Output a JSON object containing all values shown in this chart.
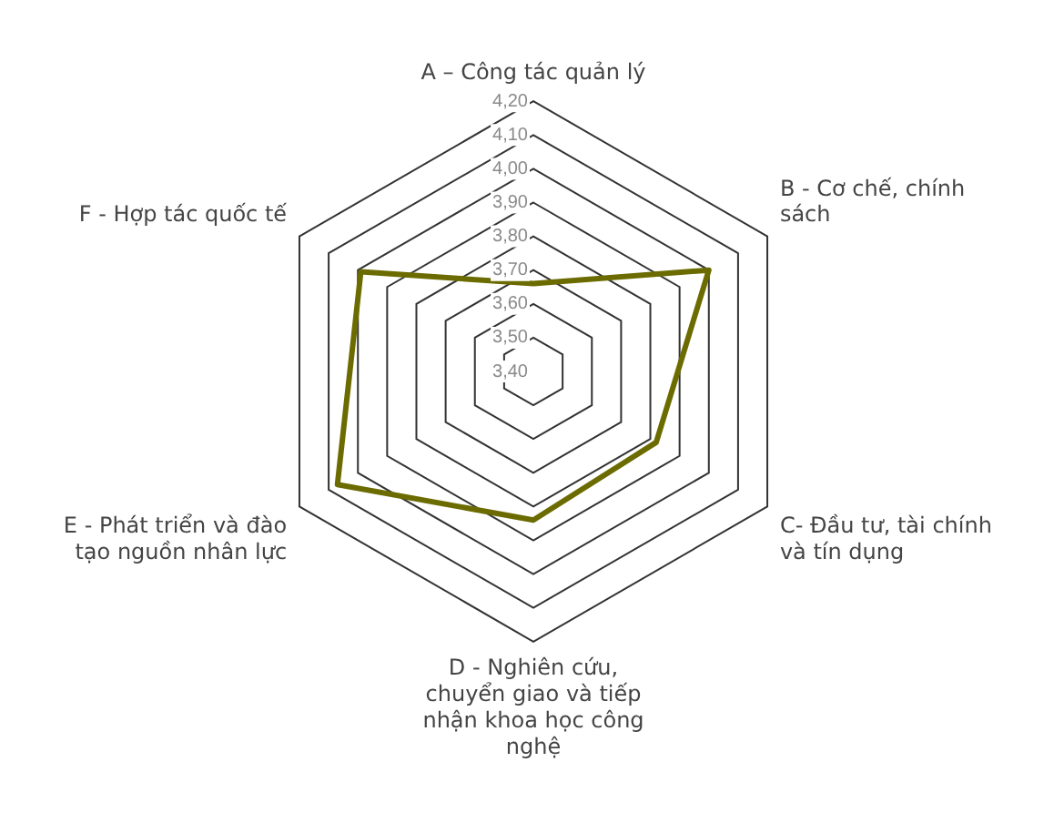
{
  "chart_data": {
    "type": "radar",
    "categories": [
      "A – Công tác quản lý",
      "B - Cơ chế, chính sách",
      "C- Đầu tư, tài chính và tín dụng",
      "D - Nghiên cứu, chuyển giao và tiếp nhận khoa học công nghệ",
      "E - Phát triển và đào tạo nguồn nhân lực",
      "F - Hợp tác quốc tế"
    ],
    "series": [
      {
        "color": "#6b6b00",
        "values": [
          3.66,
          4.0,
          3.82,
          3.84,
          4.07,
          3.99
        ]
      }
    ],
    "ylim": [
      3.4,
      4.2
    ],
    "yticks": [
      {
        "value": 3.4,
        "label": "3,40"
      },
      {
        "value": 3.5,
        "label": "3,50"
      },
      {
        "value": 3.6,
        "label": "3,60"
      },
      {
        "value": 3.7,
        "label": "3,70"
      },
      {
        "value": 3.8,
        "label": "3,80"
      },
      {
        "value": 3.9,
        "label": "3,90"
      },
      {
        "value": 4.0,
        "label": "4,00"
      },
      {
        "value": 4.1,
        "label": "4,10"
      },
      {
        "value": 4.2,
        "label": "4,20"
      }
    ],
    "grid": true,
    "legend": false,
    "marker": "none"
  }
}
